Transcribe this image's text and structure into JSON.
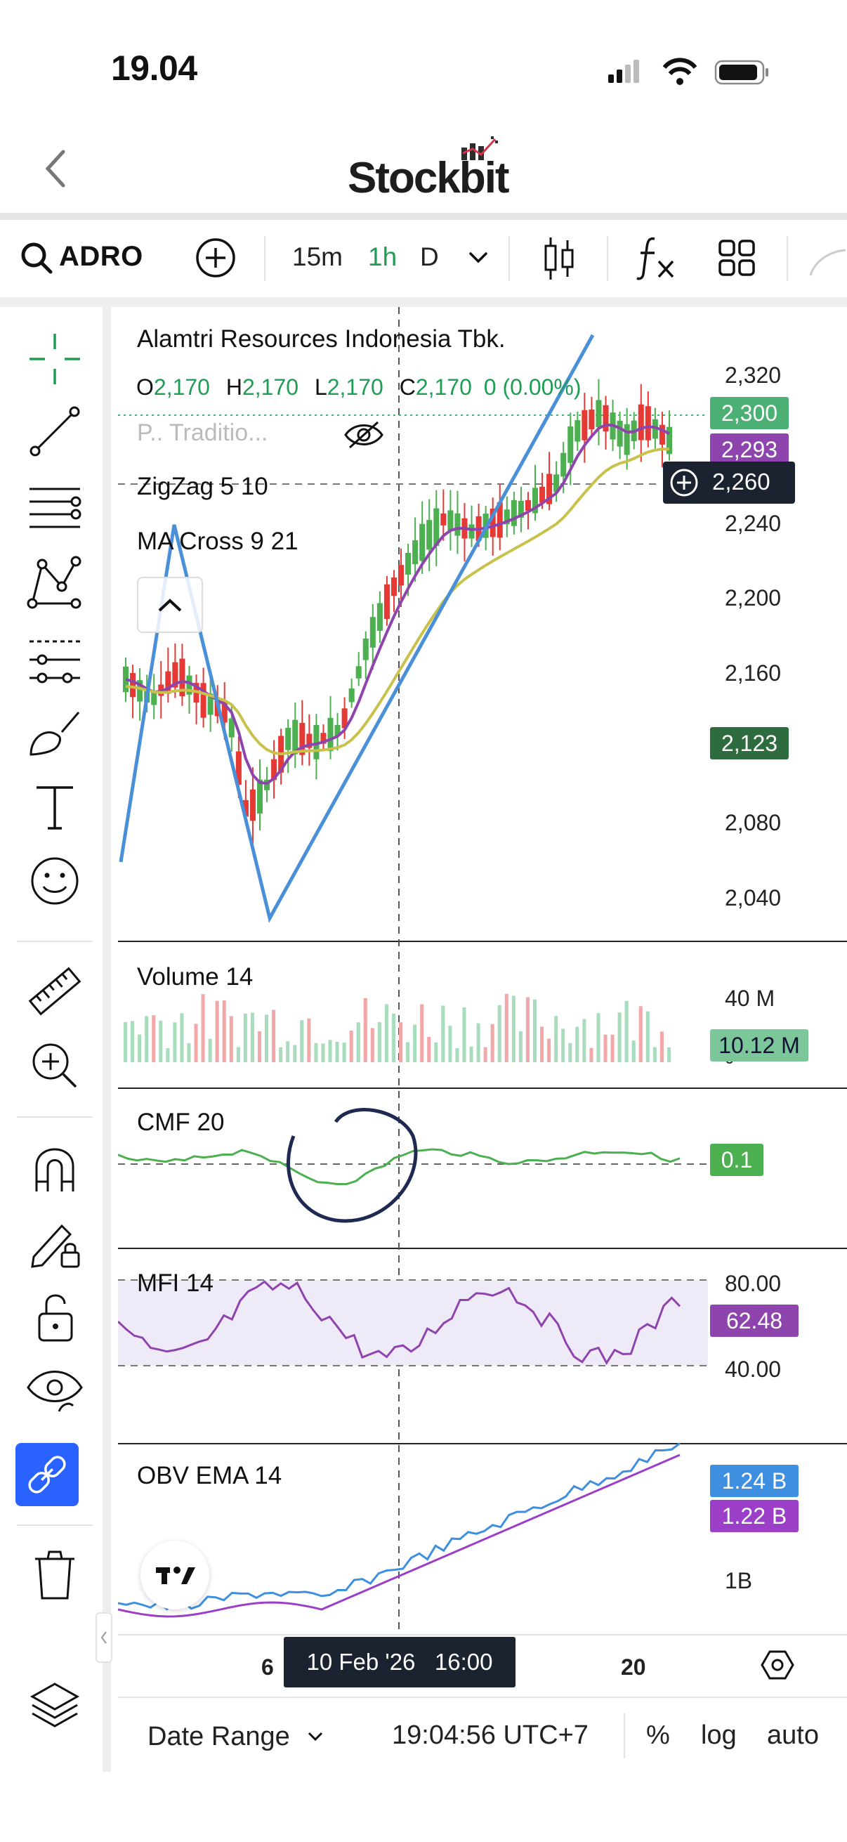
{
  "status": {
    "time": "19.04"
  },
  "header": {
    "back_icon": "chevron-left-icon",
    "logo": "Stockbit"
  },
  "toolbar": {
    "ticker": "ADRO",
    "intervals": [
      "15m",
      "1h",
      "D"
    ],
    "active_interval": "1h"
  },
  "chart": {
    "company": "Alamtri Resources Indonesia Tbk.",
    "ohlc": {
      "o_label": "O",
      "o": "2,170",
      "h_label": "H",
      "h": "2,170",
      "l_label": "L",
      "l": "2,170",
      "c_label": "C",
      "c": "2,170",
      "change": "0 (0.00%)"
    },
    "hidden_indicator": "P.. Traditio...",
    "indicators": [
      "ZigZag 5 10",
      "MA Cross 9 21"
    ],
    "price_axis": [
      "2,320",
      "2,240",
      "2,200",
      "2,160",
      "2,080",
      "2,040"
    ],
    "tags": {
      "last": "2,300",
      "ma": "2,293",
      "crosshair": "2,260",
      "ma2": "2,123"
    },
    "volume": {
      "label": "Volume 14",
      "axis": "40 M",
      "axis_zero": "0",
      "tag": "10.12 M"
    },
    "cmf": {
      "label": "CMF 20",
      "tag": "0.1"
    },
    "mfi": {
      "label": "MFI 14",
      "axis_top": "80.00",
      "axis_bottom": "40.00",
      "tag": "62.48"
    },
    "obv": {
      "label": "OBV EMA 14",
      "axis": "1B",
      "tag1": "1.24 B",
      "tag2": "1.22 B"
    },
    "time_axis": {
      "left": "6",
      "crosshair": "10 Feb '26   16:00",
      "right": "20"
    },
    "colors": {
      "up": "#4caf50",
      "down": "#e53935",
      "ma_fast": "#8e44ad",
      "ma_slow": "#c8c24a",
      "zigzag": "#4a90d9",
      "tag_green": "#4caf73",
      "tag_purple": "#8e44ad",
      "tag_dark": "#1c2330"
    }
  },
  "bottom": {
    "date_range": "Date Range",
    "clock": "19:04:56 UTC+7",
    "percent": "%",
    "log": "log",
    "auto": "auto"
  }
}
